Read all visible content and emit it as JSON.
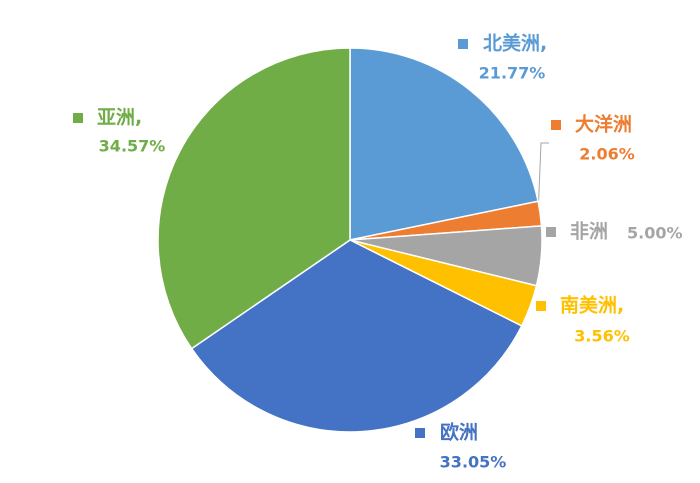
{
  "chart_data": {
    "type": "pie",
    "categories": [
      "北美洲,",
      "大洋洲",
      "非洲",
      "南美洲,",
      "欧洲",
      "亚洲,"
    ],
    "values": [
      21.77,
      2.06,
      5.0,
      3.56,
      33.05,
      34.57
    ],
    "value_labels": [
      "21.77%",
      "2.06%",
      "5.00%",
      "3.56%",
      "33.05%",
      "34.57%"
    ],
    "colors": [
      "#5b9bd5",
      "#ed7d31",
      "#a5a5a5",
      "#ffc000",
      "#4472c4",
      "#70ad47"
    ]
  }
}
